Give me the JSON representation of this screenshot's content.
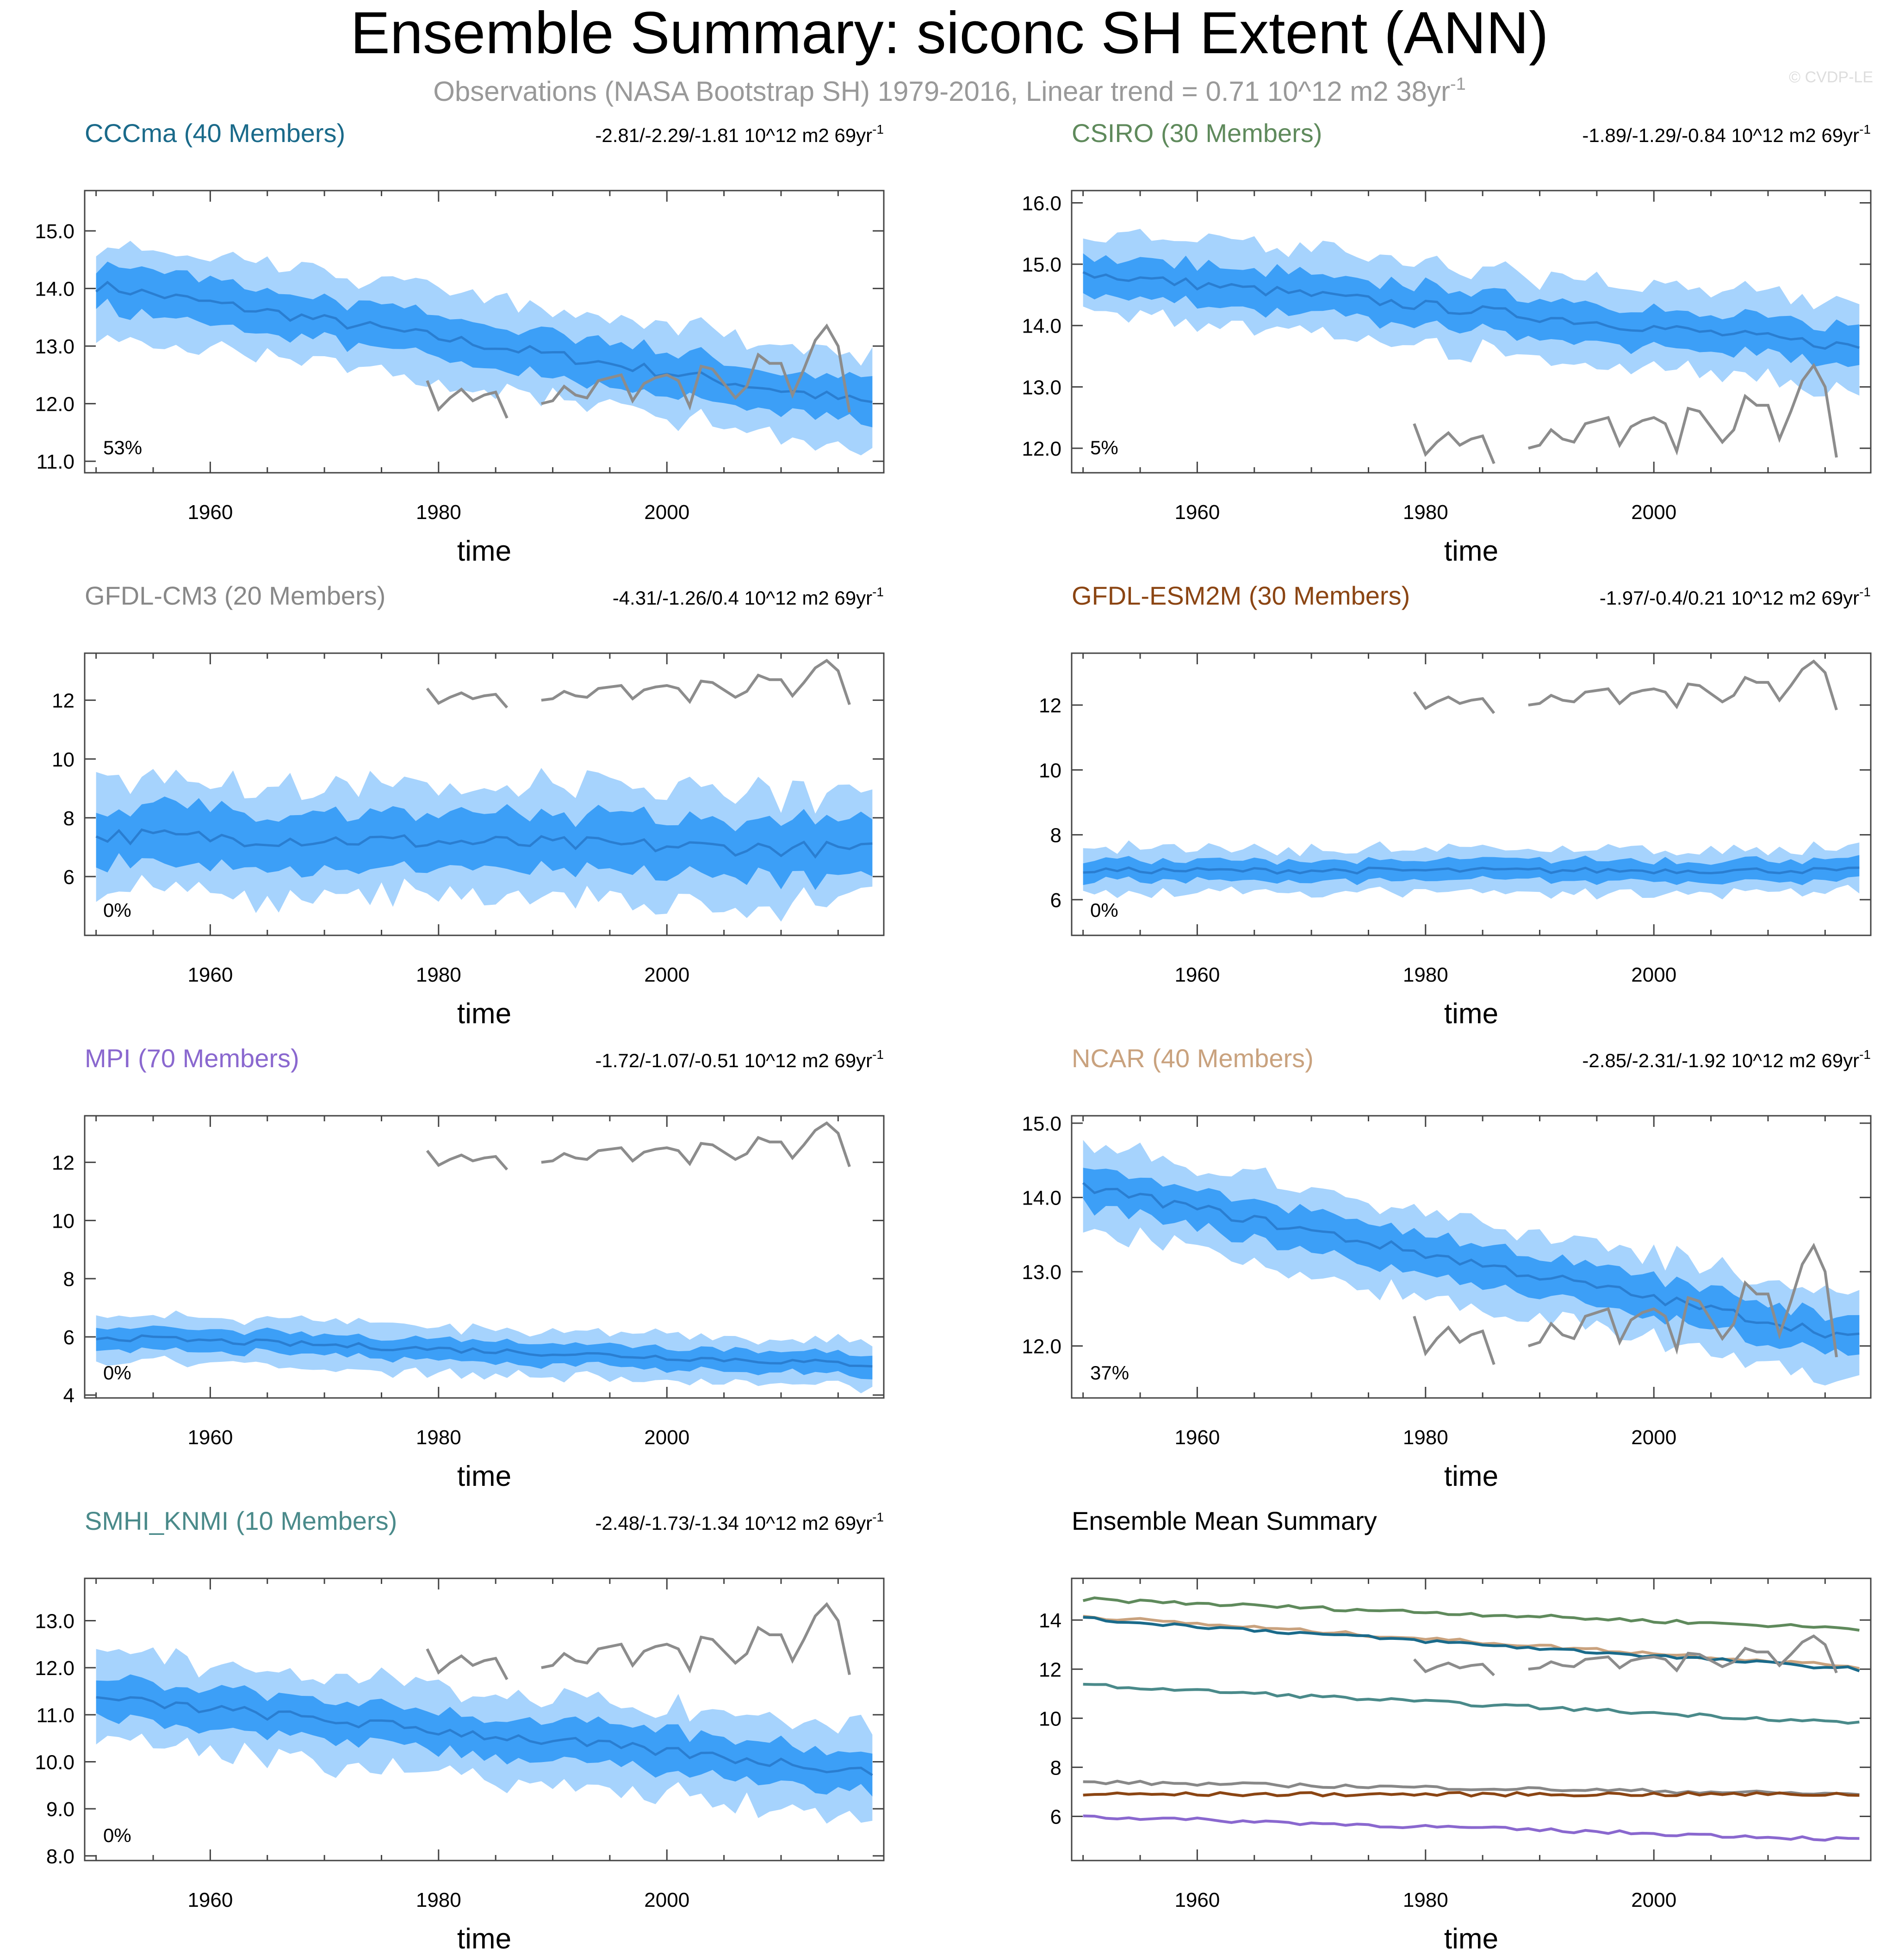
{
  "title": "Ensemble Summary: siconc SH Extent (ANN)",
  "subtitle_main": "Observations (NASA Bootstrap SH) 1979-2016, Linear trend = 0.71 10^12 m2 38yr",
  "subtitle_sup": "-1",
  "watermark": "© CVDP-LE",
  "trend_sup": "-1",
  "colors": {
    "outer_band": "#a6d3fd",
    "inner_band": "#3c9ff7",
    "mean_line": "#2a7ed1",
    "obs_line": "#8c8c8c"
  },
  "chart_data": [
    {
      "type": "area",
      "title": "CCCma (40 Members)",
      "title_color": "#1a6a8a",
      "trend_text": "-2.81/-2.29/-1.81 10^12 m2 69yr",
      "percent_label": "53%",
      "xlabel": "time",
      "ylabel": "",
      "xlim": [
        1949,
        2019
      ],
      "ylim": [
        10.8,
        15.7
      ],
      "x_ticks": [
        1960,
        1980,
        2000
      ],
      "y_ticks": [
        11.0,
        12.0,
        13.0,
        14.0,
        15.0
      ],
      "y_tick_labels": [
        "11.0",
        "12.0",
        "13.0",
        "14.0",
        "15.0"
      ],
      "mean_start": 14.05,
      "mean_end": 12.0,
      "spread_inner": 0.35,
      "spread_outer": 0.75
    },
    {
      "type": "area",
      "title": "CSIRO (30 Members)",
      "title_color": "#5f8a5c",
      "trend_text": "-1.89/-1.29/-0.84 10^12 m2 69yr",
      "percent_label": "5%",
      "xlabel": "time",
      "ylabel": "",
      "xlim": [
        1949,
        2019
      ],
      "ylim": [
        11.6,
        16.2
      ],
      "x_ticks": [
        1960,
        1980,
        2000
      ],
      "y_ticks": [
        12.0,
        13.0,
        14.0,
        15.0,
        16.0
      ],
      "y_tick_labels": [
        "12.0",
        "13.0",
        "14.0",
        "15.0",
        "16.0"
      ],
      "mean_start": 14.85,
      "mean_end": 13.65,
      "spread_inner": 0.3,
      "spread_outer": 0.65
    },
    {
      "type": "area",
      "title": "GFDL-CM3 (20 Members)",
      "title_color": "#888888",
      "trend_text": "-4.31/-1.26/0.4 10^12 m2 69yr",
      "percent_label": "0%",
      "xlabel": "time",
      "ylabel": "",
      "xlim": [
        1949,
        2019
      ],
      "ylim": [
        4.0,
        13.6
      ],
      "x_ticks": [
        1960,
        1980,
        2000
      ],
      "y_ticks": [
        6,
        8,
        10,
        12
      ],
      "y_tick_labels": [
        "6",
        "8",
        "10",
        "12"
      ],
      "mean_start": 7.4,
      "mean_end": 6.9,
      "spread_inner": 0.9,
      "spread_outer": 1.8
    },
    {
      "type": "area",
      "title": "GFDL-ESM2M (30 Members)",
      "title_color": "#8b4513",
      "trend_text": "-1.97/-0.4/0.21 10^12 m2 69yr",
      "percent_label": "0%",
      "xlabel": "time",
      "ylabel": "",
      "xlim": [
        1949,
        2019
      ],
      "ylim": [
        4.9,
        13.6
      ],
      "x_ticks": [
        1960,
        1980,
        2000
      ],
      "y_ticks": [
        6,
        8,
        10,
        12
      ],
      "y_tick_labels": [
        "6",
        "8",
        "10",
        "12"
      ],
      "mean_start": 6.9,
      "mean_end": 6.9,
      "spread_inner": 0.3,
      "spread_outer": 0.65
    },
    {
      "type": "area",
      "title": "MPI (70 Members)",
      "title_color": "#8a68cf",
      "trend_text": "-1.72/-1.07/-0.51 10^12 m2 69yr",
      "percent_label": "0%",
      "xlabel": "time",
      "ylabel": "",
      "xlim": [
        1949,
        2019
      ],
      "ylim": [
        3.9,
        13.6
      ],
      "x_ticks": [
        1960,
        1980,
        2000
      ],
      "y_ticks": [
        4,
        6,
        8,
        10,
        12
      ],
      "y_tick_labels": [
        "4",
        "6",
        "8",
        "10",
        "12"
      ],
      "mean_start": 6.0,
      "mean_end": 5.05,
      "spread_inner": 0.35,
      "spread_outer": 0.75
    },
    {
      "type": "area",
      "title": "NCAR (40 Members)",
      "title_color": "#c9a27e",
      "trend_text": "-2.85/-2.31/-1.92 10^12 m2 69yr",
      "percent_label": "37%",
      "xlabel": "time",
      "ylabel": "",
      "xlim": [
        1949,
        2019
      ],
      "ylim": [
        11.3,
        15.1
      ],
      "x_ticks": [
        1960,
        1980,
        2000
      ],
      "y_ticks": [
        12.0,
        13.0,
        14.0,
        15.0
      ],
      "y_tick_labels": [
        "12.0",
        "13.0",
        "14.0",
        "15.0"
      ],
      "mean_start": 14.15,
      "mean_end": 12.1,
      "spread_inner": 0.25,
      "spread_outer": 0.55
    },
    {
      "type": "area",
      "title": "SMHI_KNMI (10 Members)",
      "title_color": "#4a8a8a",
      "trend_text": "-2.48/-1.73/-1.34 10^12 m2 69yr",
      "percent_label": "0%",
      "xlabel": "time",
      "ylabel": "",
      "xlim": [
        1949,
        2019
      ],
      "ylim": [
        7.9,
        13.9
      ],
      "x_ticks": [
        1960,
        1980,
        2000
      ],
      "y_ticks": [
        8.0,
        9.0,
        10.0,
        11.0,
        12.0,
        13.0
      ],
      "y_tick_labels": [
        "8.0",
        "9.0",
        "10.0",
        "11.0",
        "12.0",
        "13.0"
      ],
      "mean_start": 11.35,
      "mean_end": 9.8,
      "spread_inner": 0.4,
      "spread_outer": 0.9
    },
    {
      "type": "line",
      "title": "Ensemble Mean Summary",
      "title_color": "#000000",
      "xlabel": "time",
      "ylabel": "",
      "xlim": [
        1949,
        2019
      ],
      "ylim": [
        4.2,
        15.7
      ],
      "x_ticks": [
        1960,
        1980,
        2000
      ],
      "y_ticks": [
        6,
        8,
        10,
        12,
        14
      ],
      "y_tick_labels": [
        "6",
        "8",
        "10",
        "12",
        "14"
      ],
      "series": [
        {
          "name": "CSIRO",
          "color": "#5f8a5c",
          "start": 14.85,
          "end": 13.65
        },
        {
          "name": "NCAR",
          "color": "#c9a27e",
          "start": 14.15,
          "end": 12.1
        },
        {
          "name": "CCCma",
          "color": "#1a6a8a",
          "start": 14.05,
          "end": 12.0
        },
        {
          "name": "SMHI_KNMI",
          "color": "#4a8a8a",
          "start": 11.35,
          "end": 9.8
        },
        {
          "name": "GFDL-CM3",
          "color": "#888888",
          "start": 7.4,
          "end": 6.9
        },
        {
          "name": "GFDL-ESM2M",
          "color": "#8b4513",
          "start": 6.9,
          "end": 6.9
        },
        {
          "name": "MPI",
          "color": "#8a68cf",
          "start": 6.0,
          "end": 5.05
        }
      ]
    }
  ],
  "observations": {
    "name": "NASA Bootstrap SH",
    "years": [
      1979,
      1980,
      1981,
      1982,
      1983,
      1984,
      1985,
      1986,
      1987,
      1988,
      1989,
      1990,
      1991,
      1992,
      1993,
      1994,
      1995,
      1996,
      1997,
      1998,
      1999,
      2000,
      2001,
      2002,
      2003,
      2004,
      2005,
      2006,
      2007,
      2008,
      2009,
      2010,
      2011,
      2012,
      2013,
      2014,
      2015,
      2016
    ],
    "values": [
      12.4,
      11.9,
      12.1,
      12.25,
      12.05,
      12.15,
      12.2,
      11.75,
      null,
      null,
      12.0,
      12.05,
      12.3,
      12.15,
      12.1,
      12.4,
      12.45,
      12.5,
      12.05,
      12.35,
      12.45,
      12.5,
      12.4,
      11.95,
      12.65,
      12.6,
      12.35,
      12.1,
      12.3,
      12.85,
      12.7,
      12.7,
      12.15,
      12.6,
      13.1,
      13.35,
      13.0,
      11.85
    ]
  }
}
